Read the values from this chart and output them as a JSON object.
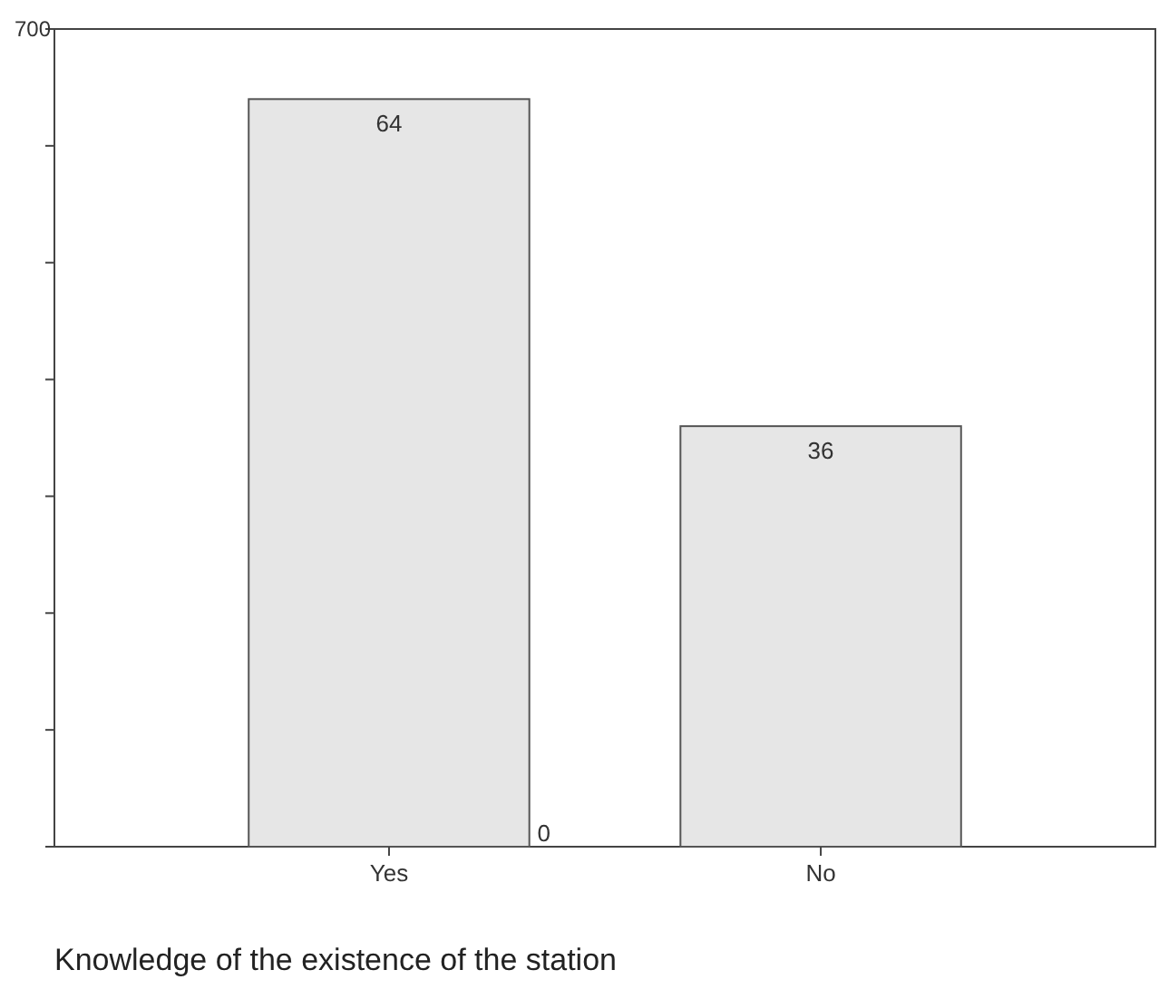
{
  "chart_data": {
    "type": "bar",
    "xlabel": "Knowledge of the existence of the station",
    "categories": [
      "Yes",
      "No"
    ],
    "values": [
      640,
      360
    ],
    "color": "#e6e6e6",
    "ylim": [
      0,
      700
    ],
    "yticks": [
      {
        "value": 0,
        "label": null
      },
      {
        "value": 100,
        "label": null
      },
      {
        "value": 200,
        "label": null
      },
      {
        "value": 300,
        "label": null
      },
      {
        "value": 400,
        "label": null
      },
      {
        "value": 500,
        "label": null
      },
      {
        "value": 600,
        "label": null
      },
      700
    ],
    "annotations": [
      {
        "text": "64",
        "x": "Yes",
        "y": 640
      },
      {
        "text": "36",
        "x": "No",
        "y": 360
      },
      "0"
    ],
    "grid": false
  }
}
